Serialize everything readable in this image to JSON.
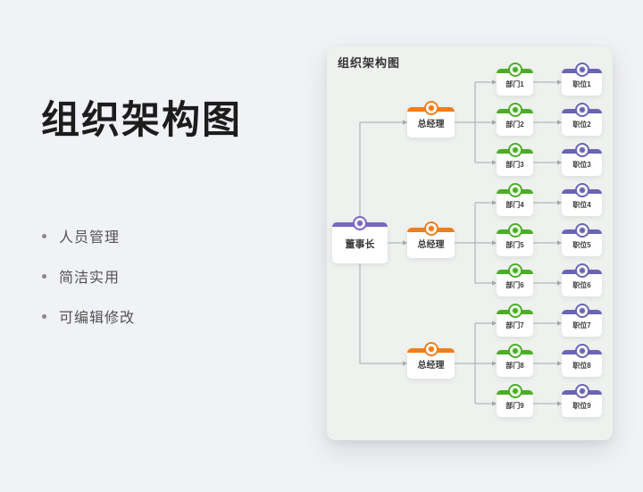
{
  "left_panel": {
    "title": "组织架构图",
    "bullets": [
      "人员管理",
      "简洁实用",
      "可编辑修改"
    ]
  },
  "card": {
    "title": "组织架构图"
  },
  "org_chart": {
    "type": "tree",
    "root": {
      "label": "董事长"
    },
    "managers": [
      {
        "label": "总经理",
        "departments": [
          {
            "label": "部门1",
            "position": "职位1"
          },
          {
            "label": "部门2",
            "position": "职位2"
          },
          {
            "label": "部门3",
            "position": "职位3"
          }
        ]
      },
      {
        "label": "总经理",
        "departments": [
          {
            "label": "部门4",
            "position": "职位4"
          },
          {
            "label": "部门5",
            "position": "职位5"
          },
          {
            "label": "部门6",
            "position": "职位6"
          }
        ]
      },
      {
        "label": "总经理",
        "departments": [
          {
            "label": "部门7",
            "position": "职位7"
          },
          {
            "label": "部门8",
            "position": "职位8"
          },
          {
            "label": "部门9",
            "position": "职位9"
          }
        ]
      }
    ]
  },
  "colors": {
    "page_bg": "#f1f2f5",
    "card_bg": "#eef1ee",
    "node_bg": "#ffffff",
    "chairman": "#7668c3",
    "manager": "#ef7e1d",
    "department": "#4bad27",
    "position": "#6a64b4",
    "connector": "#a6a9ad"
  }
}
